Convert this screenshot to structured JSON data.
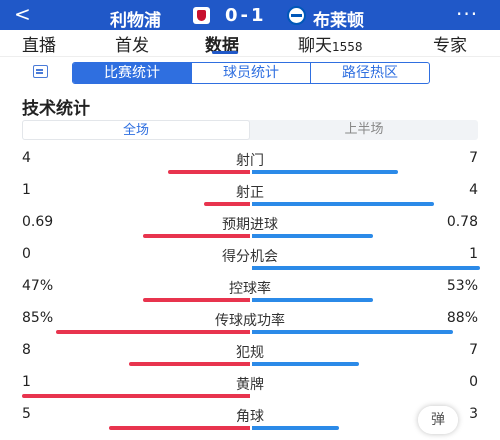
{
  "header": {
    "back_icon": "chevron-left-icon",
    "home_team": "利物浦",
    "score": "0-1",
    "away_team": "布莱顿",
    "more_icon": "more-dots-icon",
    "more_glyph": "···"
  },
  "tabs": [
    {
      "label": "直播"
    },
    {
      "label": "首发"
    },
    {
      "label": "数据",
      "active": true
    },
    {
      "label": "聊天",
      "count": "1558"
    },
    {
      "label": "专家"
    }
  ],
  "subtabs": [
    {
      "label": "比赛统计",
      "active": true
    },
    {
      "label": "球员统计"
    },
    {
      "label": "路径热区"
    }
  ],
  "section_title": "技术统计",
  "period": [
    {
      "label": "全场",
      "active": true
    },
    {
      "label": "上半场"
    }
  ],
  "colors": {
    "home_bar": "#e8344e",
    "away_bar": "#2b8ae8",
    "accent": "#2f6fe0",
    "header_bg": "#2058c8"
  },
  "stats": [
    {
      "name": "射门",
      "home": "4",
      "away": "7",
      "home_share": 0.36,
      "away_share": 0.64
    },
    {
      "name": "射正",
      "home": "1",
      "away": "4",
      "home_share": 0.2,
      "away_share": 0.8
    },
    {
      "name": "预期进球",
      "home": "0.69",
      "away": "0.78",
      "home_share": 0.47,
      "away_share": 0.53
    },
    {
      "name": "得分机会",
      "home": "0",
      "away": "1",
      "home_share": 0.0,
      "away_share": 1.0
    },
    {
      "name": "控球率",
      "home": "47%",
      "away": "53%",
      "home_share": 0.47,
      "away_share": 0.53
    },
    {
      "name": "传球成功率",
      "home": "85%",
      "away": "88%",
      "home_share": 0.85,
      "away_share": 0.88
    },
    {
      "name": "犯规",
      "home": "8",
      "away": "7",
      "home_share": 0.53,
      "away_share": 0.47
    },
    {
      "name": "黄牌",
      "home": "1",
      "away": "0",
      "home_share": 1.0,
      "away_share": 0.0
    },
    {
      "name": "角球",
      "home": "5",
      "away": "3",
      "home_share": 0.62,
      "away_share": 0.38
    }
  ],
  "danmu_button": "弹"
}
